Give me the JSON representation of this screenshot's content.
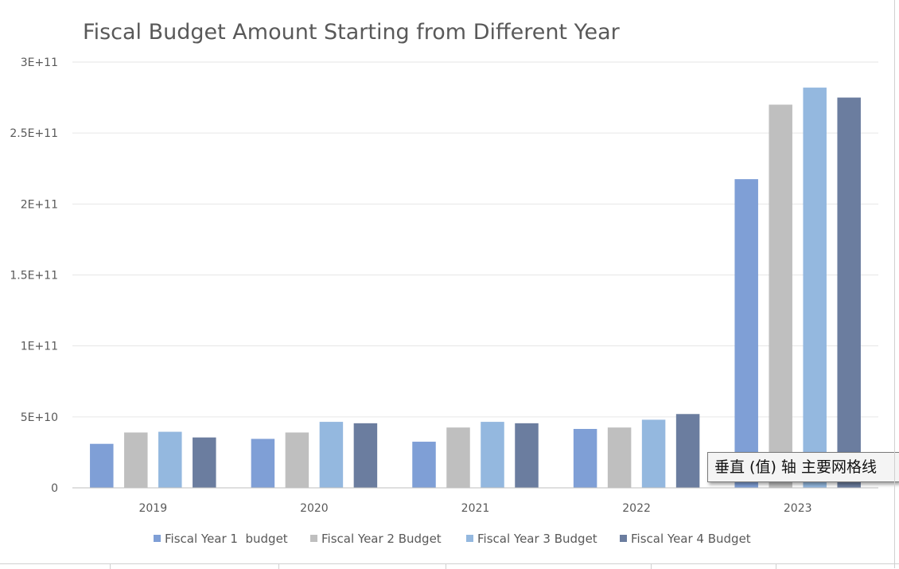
{
  "chart_data": {
    "type": "bar",
    "title": "Fiscal Budget Amount Starting from Different Year",
    "categories": [
      "2019",
      "2020",
      "2021",
      "2022",
      "2023"
    ],
    "series": [
      {
        "name": "Fiscal Year 1  budget",
        "color": "#7f9fd6",
        "values": [
          31000000000,
          34500000000,
          32500000000,
          41500000000,
          217500000000
        ]
      },
      {
        "name": "Fiscal Year 2 Budget",
        "color": "#bfbfbf",
        "values": [
          39000000000,
          39000000000,
          42500000000,
          42500000000,
          270000000000
        ]
      },
      {
        "name": "Fiscal Year 3 Budget",
        "color": "#94b8df",
        "values": [
          39500000000,
          46500000000,
          46500000000,
          48000000000,
          282000000000
        ]
      },
      {
        "name": "Fiscal Year 4 Budget",
        "color": "#6b7d9f",
        "values": [
          35500000000,
          45500000000,
          45500000000,
          52000000000,
          275000000000
        ]
      }
    ],
    "ylim": [
      0,
      300000000000
    ],
    "yticks": [
      0,
      50000000000,
      100000000000,
      150000000000,
      200000000000,
      250000000000,
      300000000000
    ],
    "ytick_labels": [
      "0",
      "5E+10",
      "1E+11",
      "1.5E+11",
      "2E+11",
      "2.5E+11",
      "3E+11"
    ],
    "xlabel": "",
    "ylabel": "",
    "grid": true,
    "legend_position": "bottom"
  },
  "tooltip": {
    "text": "垂直 (值) 轴 主要网格线"
  }
}
